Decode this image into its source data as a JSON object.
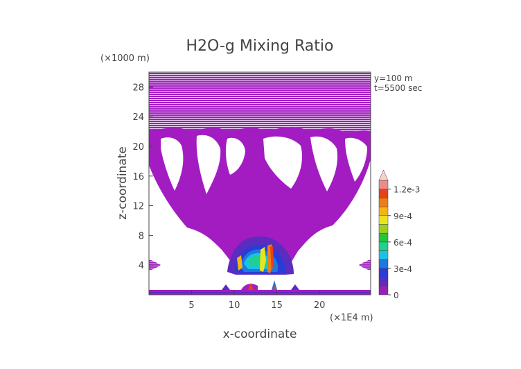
{
  "chart_data": {
    "type": "heatmap",
    "title": "H2O-g Mixing Ratio",
    "xlabel": "x-coordinate",
    "ylabel": "z-coordinate",
    "x_unit": "(×1E4 m)",
    "y_unit": "(×1000 m)",
    "annotations": [
      "y=100 m",
      "t=5500 sec"
    ],
    "xlim": [
      0,
      26
    ],
    "ylim": [
      0,
      30
    ],
    "x_ticks": [
      5,
      10,
      15,
      20
    ],
    "y_ticks": [
      4,
      8,
      12,
      16,
      20,
      24,
      28
    ],
    "colorbar": {
      "levels": [
        0,
        0.0001,
        0.0002,
        0.0003,
        0.0004,
        0.0005,
        0.0006,
        0.0007,
        0.0008,
        0.0009,
        0.001,
        0.0011,
        0.0012,
        0.0013
      ],
      "colors": [
        "#9a1fb8",
        "#5a2cc0",
        "#2a3cd6",
        "#1f77e0",
        "#19c3e6",
        "#1fd08f",
        "#25c43b",
        "#9ad11c",
        "#e8e51a",
        "#f5b414",
        "#f07d10",
        "#e8401c",
        "#f08a8a",
        "#f7d0cf"
      ],
      "tick_labels": [
        "0",
        "3e-4",
        "6e-4",
        "9e-4",
        "1.2e-3"
      ]
    },
    "fill_color": "#a21cc2"
  }
}
